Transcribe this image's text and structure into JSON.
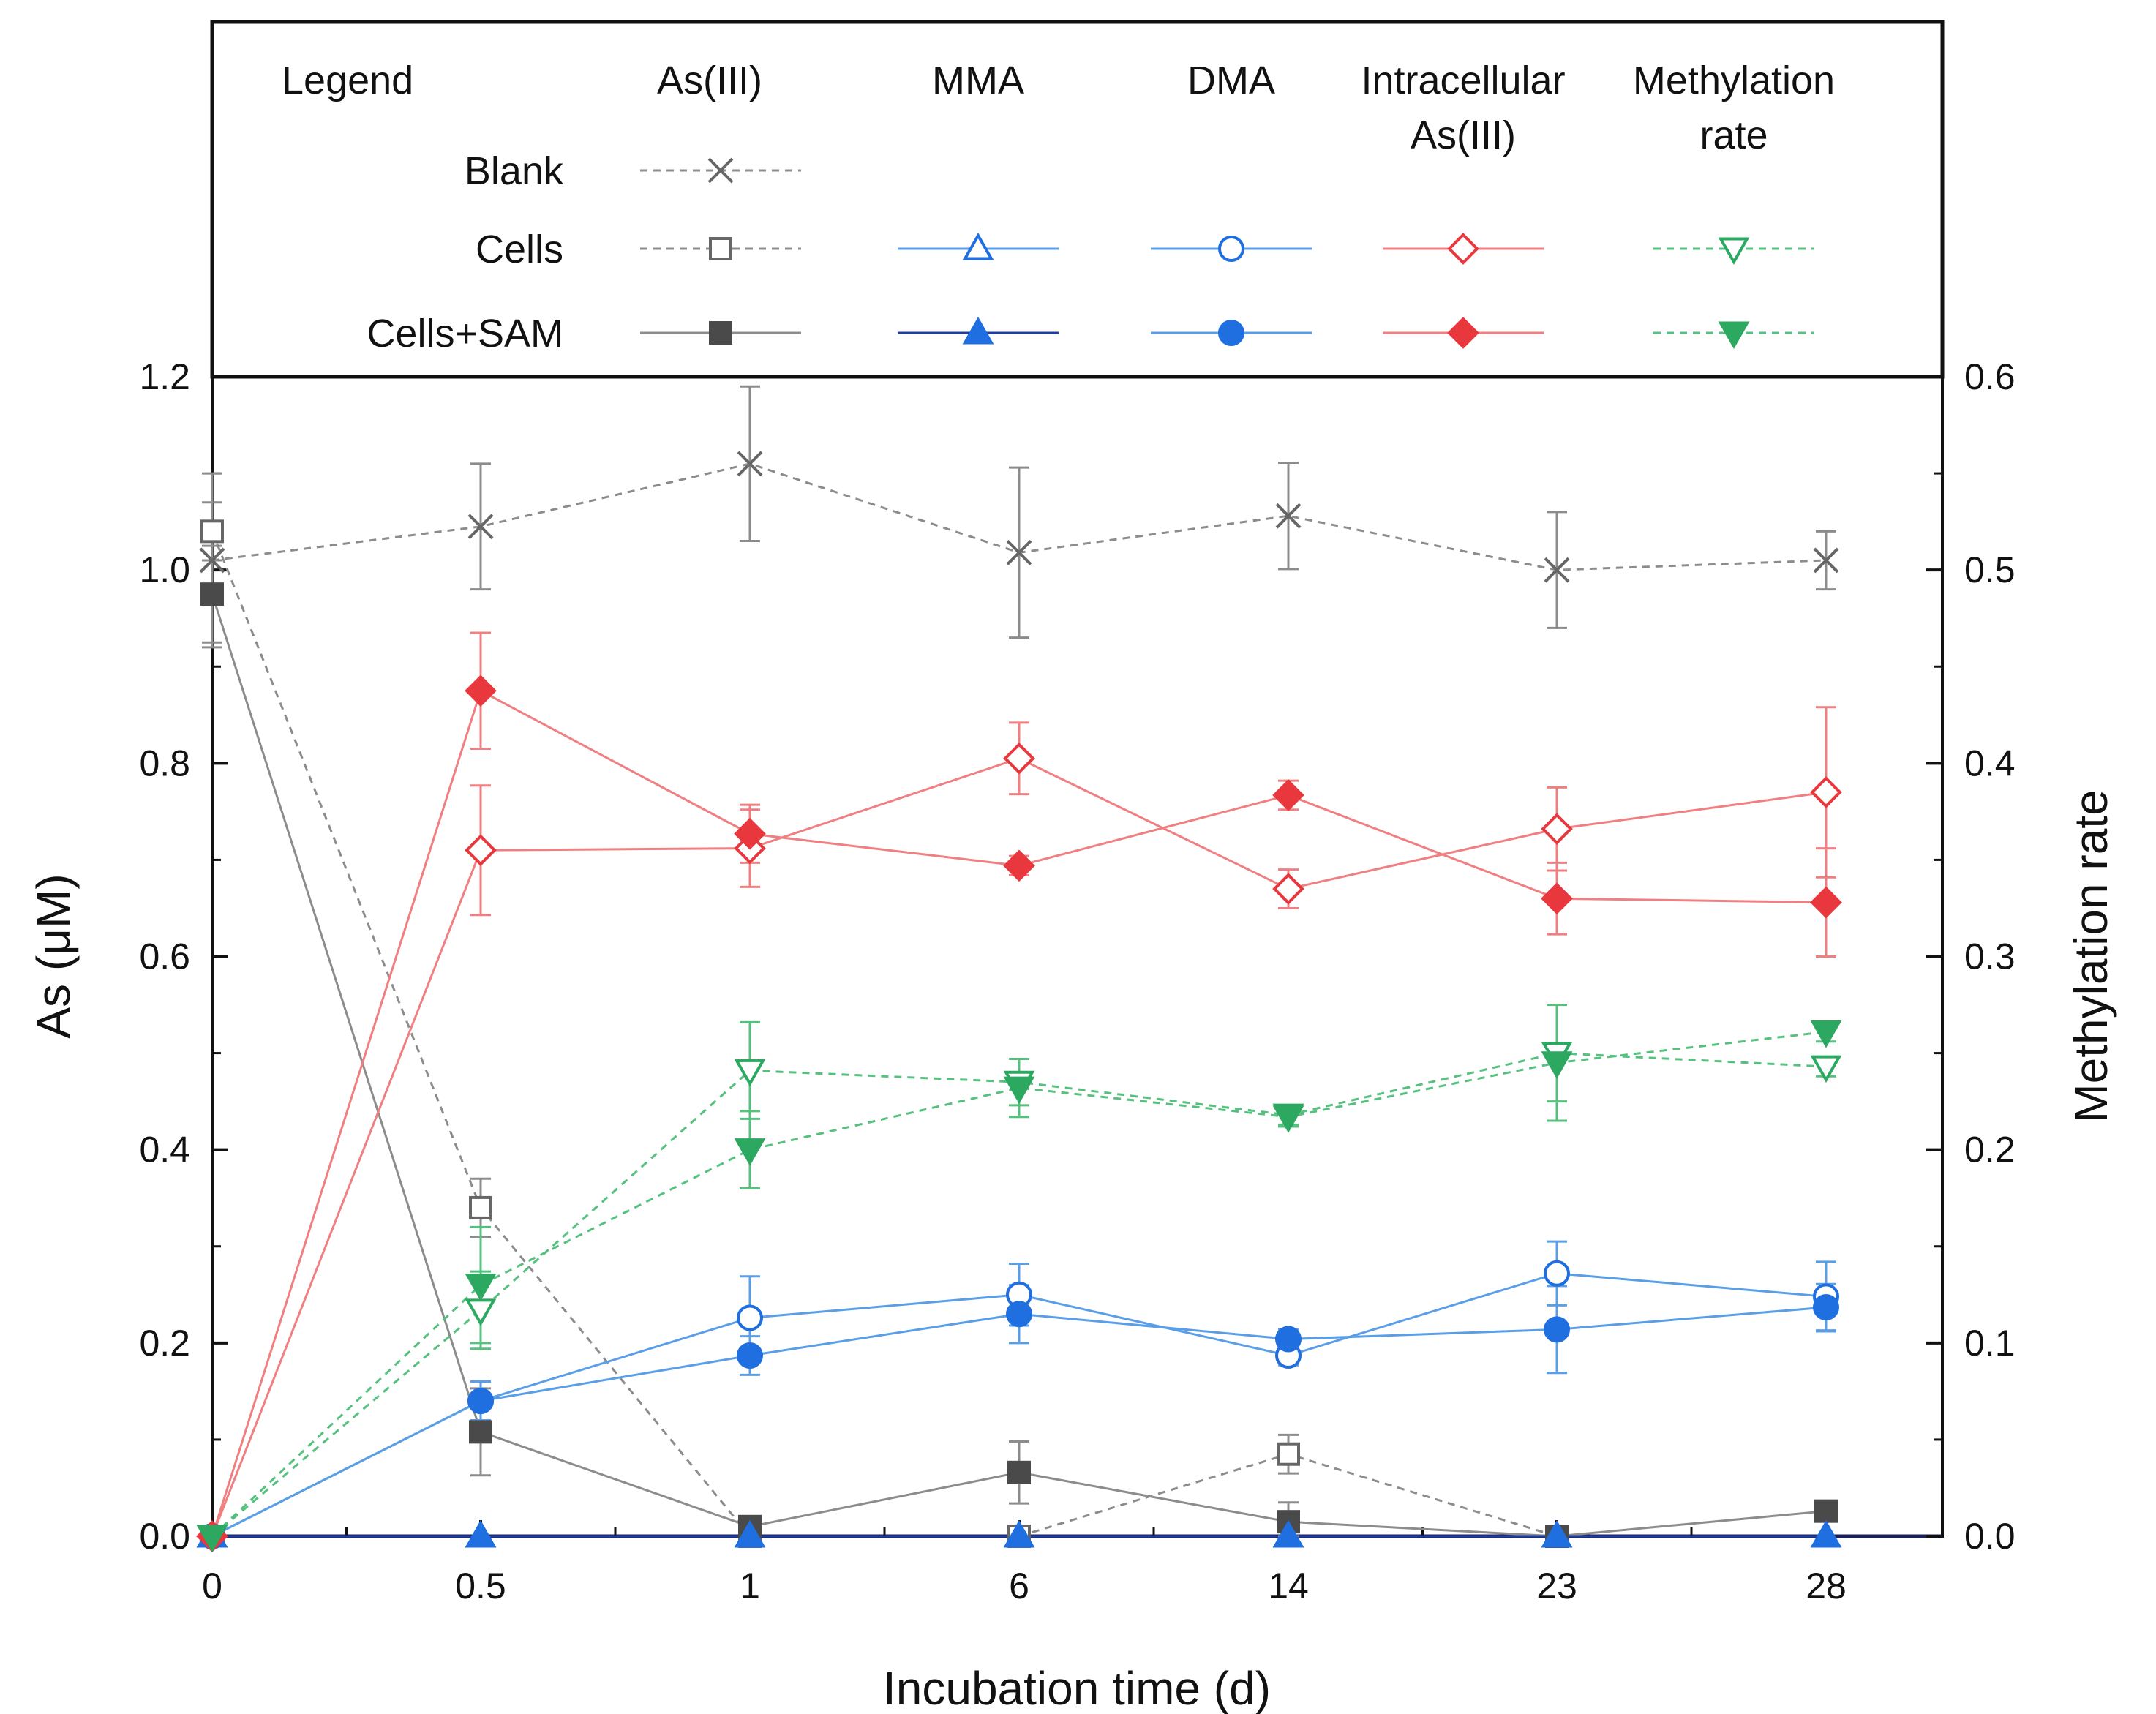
{
  "chart_data": {
    "type": "line",
    "x_categories": [
      "0",
      "0.5",
      "1",
      "6",
      "14",
      "23",
      "28"
    ],
    "xlabel": "Incubation time (d)",
    "ylabel_left": "As (μM)",
    "ylabel_right": "Methylation rate",
    "ylim_left": [
      0,
      1.2
    ],
    "ylim_right": [
      0,
      0.6
    ],
    "yticks_left": [
      "0.0",
      "0.2",
      "0.4",
      "0.6",
      "0.8",
      "1.0",
      "1.2"
    ],
    "yticks_right": [
      "0.0",
      "0.1",
      "0.2",
      "0.3",
      "0.4",
      "0.5",
      "0.6"
    ],
    "legend": {
      "title": "Legend",
      "columns": [
        "As(III)",
        "MMA",
        "DMA",
        "Intracellular As(III)",
        "Methylation rate"
      ],
      "column_lines": [
        [
          "As(III)"
        ],
        [
          "MMA"
        ],
        [
          "DMA"
        ],
        [
          "Intracellular",
          "As(III)"
        ],
        [
          "Methylation",
          "rate"
        ]
      ],
      "rows": [
        "Blank",
        "Cells",
        "Cells+SAM"
      ]
    },
    "colors": {
      "gray": "#8c8c8c",
      "dark": "#4a4a4a",
      "blue": "#1f6fe0",
      "blue_light": "#5b9ee8",
      "red": "#e8383d",
      "red_light": "#f07f81",
      "green": "#2ca860",
      "green_light": "#56c07f"
    },
    "series": [
      {
        "name": "Blank As(III)",
        "group": "Blank",
        "column": "As(III)",
        "axis": "left",
        "marker": "x",
        "filled": false,
        "dashed": true,
        "color": "#666666",
        "line_color": "#8c8c8c",
        "values": [
          1.01,
          1.045,
          1.11,
          1.018,
          1.056,
          1.0,
          1.01
        ],
        "errors": [
          0.09,
          0.065,
          0.08,
          0.088,
          0.055,
          0.06,
          0.03
        ]
      },
      {
        "name": "Cells As(III)",
        "group": "Cells",
        "column": "As(III)",
        "axis": "left",
        "marker": "square",
        "filled": false,
        "dashed": true,
        "color": "#666666",
        "line_color": "#8c8c8c",
        "values": [
          1.04,
          0.34,
          0.0,
          0.0,
          0.085,
          0.0,
          null
        ],
        "errors": [
          0.03,
          0.03,
          0,
          0,
          0.02,
          0,
          0
        ]
      },
      {
        "name": "Cells+SAM As(III)",
        "group": "Cells+SAM",
        "column": "As(III)",
        "axis": "left",
        "marker": "square",
        "filled": true,
        "dashed": false,
        "color": "#4a4a4a",
        "line_color": "#8c8c8c",
        "values": [
          0.975,
          0.108,
          0.01,
          0.066,
          0.015,
          0.0,
          0.026
        ],
        "errors": [
          0.05,
          0.045,
          0.005,
          0.032,
          0.02,
          0,
          0.01
        ]
      },
      {
        "name": "Cells MMA",
        "group": "Cells",
        "column": "MMA",
        "axis": "left",
        "marker": "triangle-up",
        "filled": false,
        "dashed": false,
        "color": "#1f6fe0",
        "line_color": "#5b9ee8",
        "values": [
          0.0,
          0.0,
          0.0,
          0.0,
          0.0,
          0.0,
          0.0
        ],
        "errors": [
          0,
          0,
          0,
          0,
          0,
          0,
          0
        ]
      },
      {
        "name": "Cells+SAM MMA",
        "group": "Cells+SAM",
        "column": "MMA",
        "axis": "left",
        "marker": "triangle-up",
        "filled": true,
        "dashed": false,
        "color": "#1f6fe0",
        "line_color": "#1f3fa0",
        "values": [
          0.0,
          0.0,
          0.0,
          0.0,
          0.0,
          0.0,
          0.0
        ],
        "errors": [
          0,
          0,
          0,
          0,
          0,
          0,
          0
        ]
      },
      {
        "name": "Cells DMA",
        "group": "Cells",
        "column": "DMA",
        "axis": "left",
        "marker": "circle",
        "filled": false,
        "dashed": false,
        "color": "#1f6fe0",
        "line_color": "#5b9ee8",
        "values": [
          0.0,
          0.14,
          0.226,
          0.25,
          0.187,
          0.272,
          0.248
        ],
        "errors": [
          0,
          0.02,
          0.043,
          0.032,
          0.01,
          0.033,
          0.036
        ]
      },
      {
        "name": "Cells+SAM DMA",
        "group": "Cells+SAM",
        "column": "DMA",
        "axis": "left",
        "marker": "circle",
        "filled": true,
        "dashed": false,
        "color": "#1f6fe0",
        "line_color": "#5b9ee8",
        "values": [
          0.0,
          0.14,
          0.187,
          0.23,
          0.204,
          0.214,
          0.237
        ],
        "errors": [
          0,
          0.02,
          0.02,
          0.03,
          0.01,
          0.045,
          0.024
        ]
      },
      {
        "name": "Cells Intracellular As(III)",
        "group": "Cells",
        "column": "Intracellular As(III)",
        "axis": "left",
        "marker": "diamond",
        "filled": false,
        "dashed": false,
        "color": "#e8383d",
        "line_color": "#f07f81",
        "values": [
          0.0,
          0.71,
          0.712,
          0.805,
          0.67,
          0.732,
          0.77
        ],
        "errors": [
          0,
          0.067,
          0.04,
          0.037,
          0.02,
          0.043,
          0.088
        ]
      },
      {
        "name": "Cells+SAM Intracellular As(III)",
        "group": "Cells+SAM",
        "column": "Intracellular As(III)",
        "axis": "left",
        "marker": "diamond",
        "filled": true,
        "dashed": false,
        "color": "#e8383d",
        "line_color": "#f07f81",
        "values": [
          0.0,
          0.875,
          0.727,
          0.694,
          0.767,
          0.66,
          0.656
        ],
        "errors": [
          0,
          0.06,
          0.03,
          0.01,
          0.015,
          0.037,
          0.056
        ]
      },
      {
        "name": "Cells Methylation rate",
        "group": "Cells",
        "column": "Methylation rate",
        "axis": "right",
        "marker": "triangle-down",
        "filled": false,
        "dashed": true,
        "color": "#2ca860",
        "line_color": "#56c07f",
        "values": [
          0.0,
          0.117,
          0.241,
          0.235,
          0.218,
          0.25,
          0.243
        ],
        "errors": [
          0,
          0.02,
          0.025,
          0.012,
          0.005,
          0.025,
          0.005
        ]
      },
      {
        "name": "Cells+SAM Methylation rate",
        "group": "Cells+SAM",
        "column": "Methylation rate",
        "axis": "right",
        "marker": "triangle-down",
        "filled": true,
        "dashed": true,
        "color": "#2ca860",
        "line_color": "#56c07f",
        "values": [
          0.0,
          0.13,
          0.2,
          0.232,
          0.217,
          0.245,
          0.261
        ],
        "errors": [
          0,
          0.03,
          0.02,
          0.015,
          0.005,
          0.03,
          0.005
        ]
      }
    ]
  }
}
